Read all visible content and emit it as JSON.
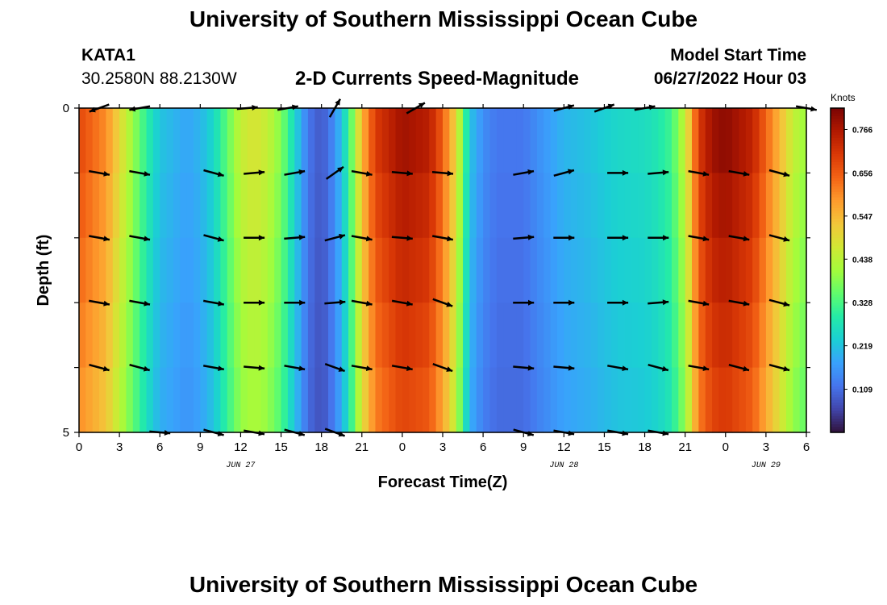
{
  "header": {
    "title": "University of Southern Mississippi Ocean Cube",
    "station": "KATA1",
    "coords": "30.2580N  88.2130W",
    "subtitle": "2-D Currents Speed-Magnitude",
    "model_start_label": "Model Start Time",
    "model_start_value": "06/27/2022 Hour 03"
  },
  "footer": {
    "title": "University of Southern Mississippi Ocean Cube"
  },
  "chart_data": {
    "type": "heatmap",
    "title": "2-D Currents Speed-Magnitude",
    "xlabel": "Forecast Time(Z)",
    "ylabel": "Depth (ft)",
    "x_tick_labels": [
      "0",
      "3",
      "6",
      "9",
      "12",
      "15",
      "18",
      "21",
      "0",
      "3",
      "6",
      "9",
      "12",
      "15",
      "18",
      "21",
      "0",
      "3",
      "6"
    ],
    "x_range_hours": [
      0,
      54
    ],
    "date_labels": [
      {
        "text": "JUN 27",
        "hour": 12
      },
      {
        "text": "JUN 28",
        "hour": 36
      },
      {
        "text": "JUN 29",
        "hour": 51
      }
    ],
    "y_tick_labels": [
      {
        "text": "0",
        "depth": 0
      },
      {
        "text": "5",
        "depth": 5
      }
    ],
    "y_range_ft": [
      0,
      5
    ],
    "depth_levels": 5,
    "colorbar": {
      "unit": "Knots",
      "range": [
        0.0,
        0.82
      ],
      "ticks": [
        "0.766",
        "0.656",
        "0.547",
        "0.438",
        "0.328",
        "0.219",
        "0.109"
      ],
      "tick_values": [
        0.766,
        0.656,
        0.547,
        0.438,
        0.328,
        0.219,
        0.109
      ],
      "stops": [
        "#30123b",
        "#4145ab",
        "#4675ed",
        "#39a2fc",
        "#1bcfd4",
        "#24eca6",
        "#61fc6c",
        "#a4fc3b",
        "#d1e834",
        "#f3c63a",
        "#fe9b2d",
        "#f36315",
        "#d93806",
        "#b11901",
        "#7a0403"
      ]
    },
    "speed_profile": {
      "hours": [
        0,
        2,
        3,
        5,
        6,
        8,
        9,
        10,
        11,
        12,
        13,
        14,
        15,
        16,
        17,
        18,
        19,
        20,
        21,
        22,
        24,
        26,
        27,
        28,
        29,
        30,
        31,
        33,
        34,
        36,
        38,
        40,
        42,
        43,
        44,
        45,
        46,
        47,
        48,
        50,
        52,
        53,
        54
      ],
      "knots": [
        0.68,
        0.6,
        0.5,
        0.3,
        0.22,
        0.18,
        0.2,
        0.25,
        0.35,
        0.45,
        0.48,
        0.45,
        0.38,
        0.25,
        0.12,
        0.08,
        0.15,
        0.3,
        0.55,
        0.7,
        0.78,
        0.75,
        0.65,
        0.5,
        0.22,
        0.15,
        0.12,
        0.12,
        0.15,
        0.2,
        0.22,
        0.25,
        0.26,
        0.28,
        0.32,
        0.45,
        0.7,
        0.78,
        0.8,
        0.74,
        0.55,
        0.45,
        0.4
      ]
    },
    "vector_rows": [
      {
        "depth": 0.0,
        "arrows": [
          {
            "h": 1.5,
            "dir": 200
          },
          {
            "h": 4.5,
            "dir": 190
          },
          {
            "h": 12.5,
            "dir": 5
          },
          {
            "h": 15.5,
            "dir": 10
          },
          {
            "h": 19,
            "dir": 60
          },
          {
            "h": 25,
            "dir": 30
          },
          {
            "h": 36,
            "dir": 15
          },
          {
            "h": 39,
            "dir": 20
          },
          {
            "h": 42,
            "dir": 10
          },
          {
            "h": 54,
            "dir": 350
          }
        ]
      },
      {
        "depth": 1.0,
        "arrows": [
          {
            "h": 1.5,
            "dir": 350
          },
          {
            "h": 4.5,
            "dir": 350
          },
          {
            "h": 10,
            "dir": 345
          },
          {
            "h": 13,
            "dir": 5
          },
          {
            "h": 16,
            "dir": 10
          },
          {
            "h": 19,
            "dir": 35
          },
          {
            "h": 21,
            "dir": 350
          },
          {
            "h": 24,
            "dir": 355
          },
          {
            "h": 27,
            "dir": 355
          },
          {
            "h": 33,
            "dir": 10
          },
          {
            "h": 36,
            "dir": 15
          },
          {
            "h": 40,
            "dir": 0
          },
          {
            "h": 43,
            "dir": 5
          },
          {
            "h": 46,
            "dir": 350
          },
          {
            "h": 49,
            "dir": 350
          },
          {
            "h": 52,
            "dir": 345
          }
        ]
      },
      {
        "depth": 2.0,
        "arrows": [
          {
            "h": 1.5,
            "dir": 350
          },
          {
            "h": 4.5,
            "dir": 350
          },
          {
            "h": 10,
            "dir": 345
          },
          {
            "h": 13,
            "dir": 0
          },
          {
            "h": 16,
            "dir": 5
          },
          {
            "h": 19,
            "dir": 15
          },
          {
            "h": 21,
            "dir": 350
          },
          {
            "h": 24,
            "dir": 355
          },
          {
            "h": 27,
            "dir": 350
          },
          {
            "h": 33,
            "dir": 5
          },
          {
            "h": 36,
            "dir": 0
          },
          {
            "h": 40,
            "dir": 0
          },
          {
            "h": 43,
            "dir": 0
          },
          {
            "h": 46,
            "dir": 350
          },
          {
            "h": 49,
            "dir": 350
          },
          {
            "h": 52,
            "dir": 345
          }
        ]
      },
      {
        "depth": 3.0,
        "arrows": [
          {
            "h": 1.5,
            "dir": 350
          },
          {
            "h": 4.5,
            "dir": 350
          },
          {
            "h": 10,
            "dir": 350
          },
          {
            "h": 13,
            "dir": 0
          },
          {
            "h": 16,
            "dir": 0
          },
          {
            "h": 19,
            "dir": 5
          },
          {
            "h": 21,
            "dir": 350
          },
          {
            "h": 24,
            "dir": 350
          },
          {
            "h": 27,
            "dir": 340
          },
          {
            "h": 33,
            "dir": 0
          },
          {
            "h": 36,
            "dir": 0
          },
          {
            "h": 40,
            "dir": 0
          },
          {
            "h": 43,
            "dir": 5
          },
          {
            "h": 46,
            "dir": 350
          },
          {
            "h": 49,
            "dir": 350
          },
          {
            "h": 52,
            "dir": 345
          }
        ]
      },
      {
        "depth": 4.0,
        "arrows": [
          {
            "h": 1.5,
            "dir": 345
          },
          {
            "h": 4.5,
            "dir": 345
          },
          {
            "h": 10,
            "dir": 350
          },
          {
            "h": 13,
            "dir": 355
          },
          {
            "h": 16,
            "dir": 350
          },
          {
            "h": 19,
            "dir": 340
          },
          {
            "h": 21,
            "dir": 350
          },
          {
            "h": 24,
            "dir": 350
          },
          {
            "h": 27,
            "dir": 340
          },
          {
            "h": 33,
            "dir": 355
          },
          {
            "h": 36,
            "dir": 355
          },
          {
            "h": 40,
            "dir": 350
          },
          {
            "h": 43,
            "dir": 345
          },
          {
            "h": 46,
            "dir": 350
          },
          {
            "h": 49,
            "dir": 345
          },
          {
            "h": 52,
            "dir": 345
          }
        ]
      },
      {
        "depth": 5.0,
        "arrows": [
          {
            "h": 6,
            "dir": 355
          },
          {
            "h": 10,
            "dir": 345
          },
          {
            "h": 13,
            "dir": 350
          },
          {
            "h": 16,
            "dir": 345
          },
          {
            "h": 19,
            "dir": 340
          },
          {
            "h": 33,
            "dir": 345
          },
          {
            "h": 36,
            "dir": 350
          },
          {
            "h": 40,
            "dir": 350
          },
          {
            "h": 43,
            "dir": 350
          }
        ]
      }
    ]
  }
}
